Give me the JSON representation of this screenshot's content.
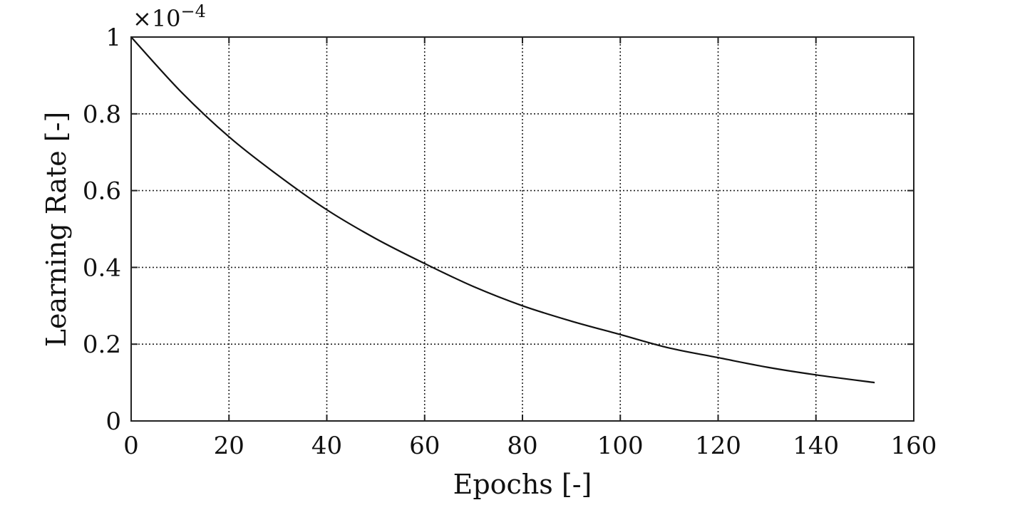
{
  "chart_data": {
    "type": "line",
    "xlabel": "Epochs [-]",
    "ylabel": "Learning Rate [-]",
    "y_multiplier": "×10",
    "y_multiplier_exponent": "−4",
    "xlim": [
      0,
      160
    ],
    "ylim": [
      0,
      1
    ],
    "xticks": [
      0,
      20,
      40,
      60,
      80,
      100,
      120,
      140,
      160
    ],
    "xtick_labels": [
      "0",
      "20",
      "40",
      "60",
      "80",
      "100",
      "120",
      "140",
      "160"
    ],
    "yticks": [
      0,
      0.2,
      0.4,
      0.6,
      0.8,
      1
    ],
    "ytick_labels": [
      "0",
      "0.2",
      "0.4",
      "0.6",
      "0.8",
      "1"
    ],
    "grid": true,
    "series": [
      {
        "color": "#111111",
        "x": [
          0,
          10,
          20,
          30,
          40,
          50,
          60,
          70,
          80,
          90,
          100,
          110,
          120,
          130,
          140,
          152
        ],
        "y": [
          1.0,
          0.86,
          0.74,
          0.64,
          0.55,
          0.475,
          0.41,
          0.35,
          0.3,
          0.26,
          0.225,
          0.19,
          0.165,
          0.14,
          0.12,
          0.1
        ]
      }
    ]
  }
}
